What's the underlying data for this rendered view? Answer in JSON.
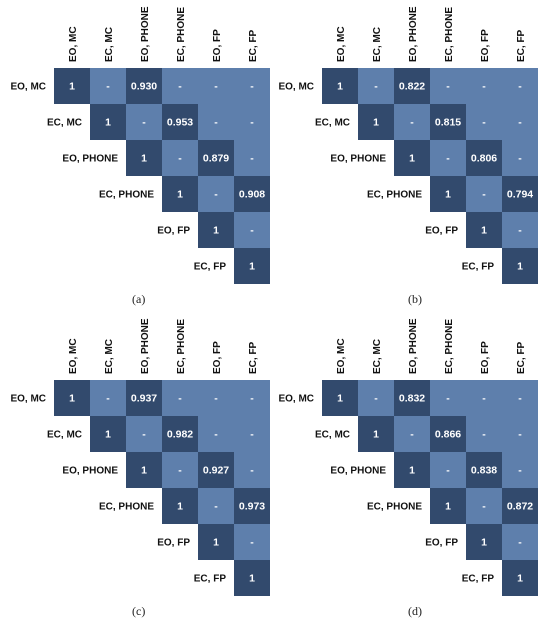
{
  "chart_data": [
    {
      "type": "heatmap",
      "panel_label": "(a)",
      "labels": [
        "EO, MC",
        "EC, MC",
        "EO, PHONE",
        "EC, PHONE",
        "EO, FP",
        "EC, FP"
      ],
      "matrix": [
        [
          "1",
          "-",
          "0.930",
          "-",
          "-",
          "-"
        ],
        [
          null,
          "1",
          "-",
          "0.953",
          "-",
          "-"
        ],
        [
          null,
          null,
          "1",
          "-",
          "0.879",
          "-"
        ],
        [
          null,
          null,
          null,
          "1",
          "-",
          "0.908"
        ],
        [
          null,
          null,
          null,
          null,
          "1",
          "-"
        ],
        [
          null,
          null,
          null,
          null,
          null,
          "1"
        ]
      ]
    },
    {
      "type": "heatmap",
      "panel_label": "(b)",
      "labels": [
        "EO, MC",
        "EC, MC",
        "EO, PHONE",
        "EC, PHONE",
        "EO, FP",
        "EC, FP"
      ],
      "matrix": [
        [
          "1",
          "-",
          "0.822",
          "-",
          "-",
          "-"
        ],
        [
          null,
          "1",
          "-",
          "0.815",
          "-",
          "-"
        ],
        [
          null,
          null,
          "1",
          "-",
          "0.806",
          "-"
        ],
        [
          null,
          null,
          null,
          "1",
          "-",
          "0.794"
        ],
        [
          null,
          null,
          null,
          null,
          "1",
          "-"
        ],
        [
          null,
          null,
          null,
          null,
          null,
          "1"
        ]
      ]
    },
    {
      "type": "heatmap",
      "panel_label": "(c)",
      "labels": [
        "EO, MC",
        "EC, MC",
        "EO, PHONE",
        "EC, PHONE",
        "EO, FP",
        "EC, FP"
      ],
      "matrix": [
        [
          "1",
          "-",
          "0.937",
          "-",
          "-",
          "-"
        ],
        [
          null,
          "1",
          "-",
          "0.982",
          "-",
          "-"
        ],
        [
          null,
          null,
          "1",
          "-",
          "0.927",
          "-"
        ],
        [
          null,
          null,
          null,
          "1",
          "-",
          "0.973"
        ],
        [
          null,
          null,
          null,
          null,
          "1",
          "-"
        ],
        [
          null,
          null,
          null,
          null,
          null,
          "1"
        ]
      ]
    },
    {
      "type": "heatmap",
      "panel_label": "(d)",
      "labels": [
        "EO, MC",
        "EC, MC",
        "EO, PHONE",
        "EC, PHONE",
        "EO, FP",
        "EC, FP"
      ],
      "matrix": [
        [
          "1",
          "-",
          "0.832",
          "-",
          "-",
          "-"
        ],
        [
          null,
          "1",
          "-",
          "0.866",
          "-",
          "-"
        ],
        [
          null,
          null,
          "1",
          "-",
          "0.838",
          "-"
        ],
        [
          null,
          null,
          null,
          "1",
          "-",
          "0.872"
        ],
        [
          null,
          null,
          null,
          null,
          "1",
          "-"
        ],
        [
          null,
          null,
          null,
          null,
          null,
          "1"
        ]
      ]
    }
  ],
  "colors": {
    "diagonal": "#324a6d",
    "value": "#324a6d",
    "empty": "#5e7fac",
    "cell_text": "#ffffff",
    "label_text": "#111111"
  }
}
